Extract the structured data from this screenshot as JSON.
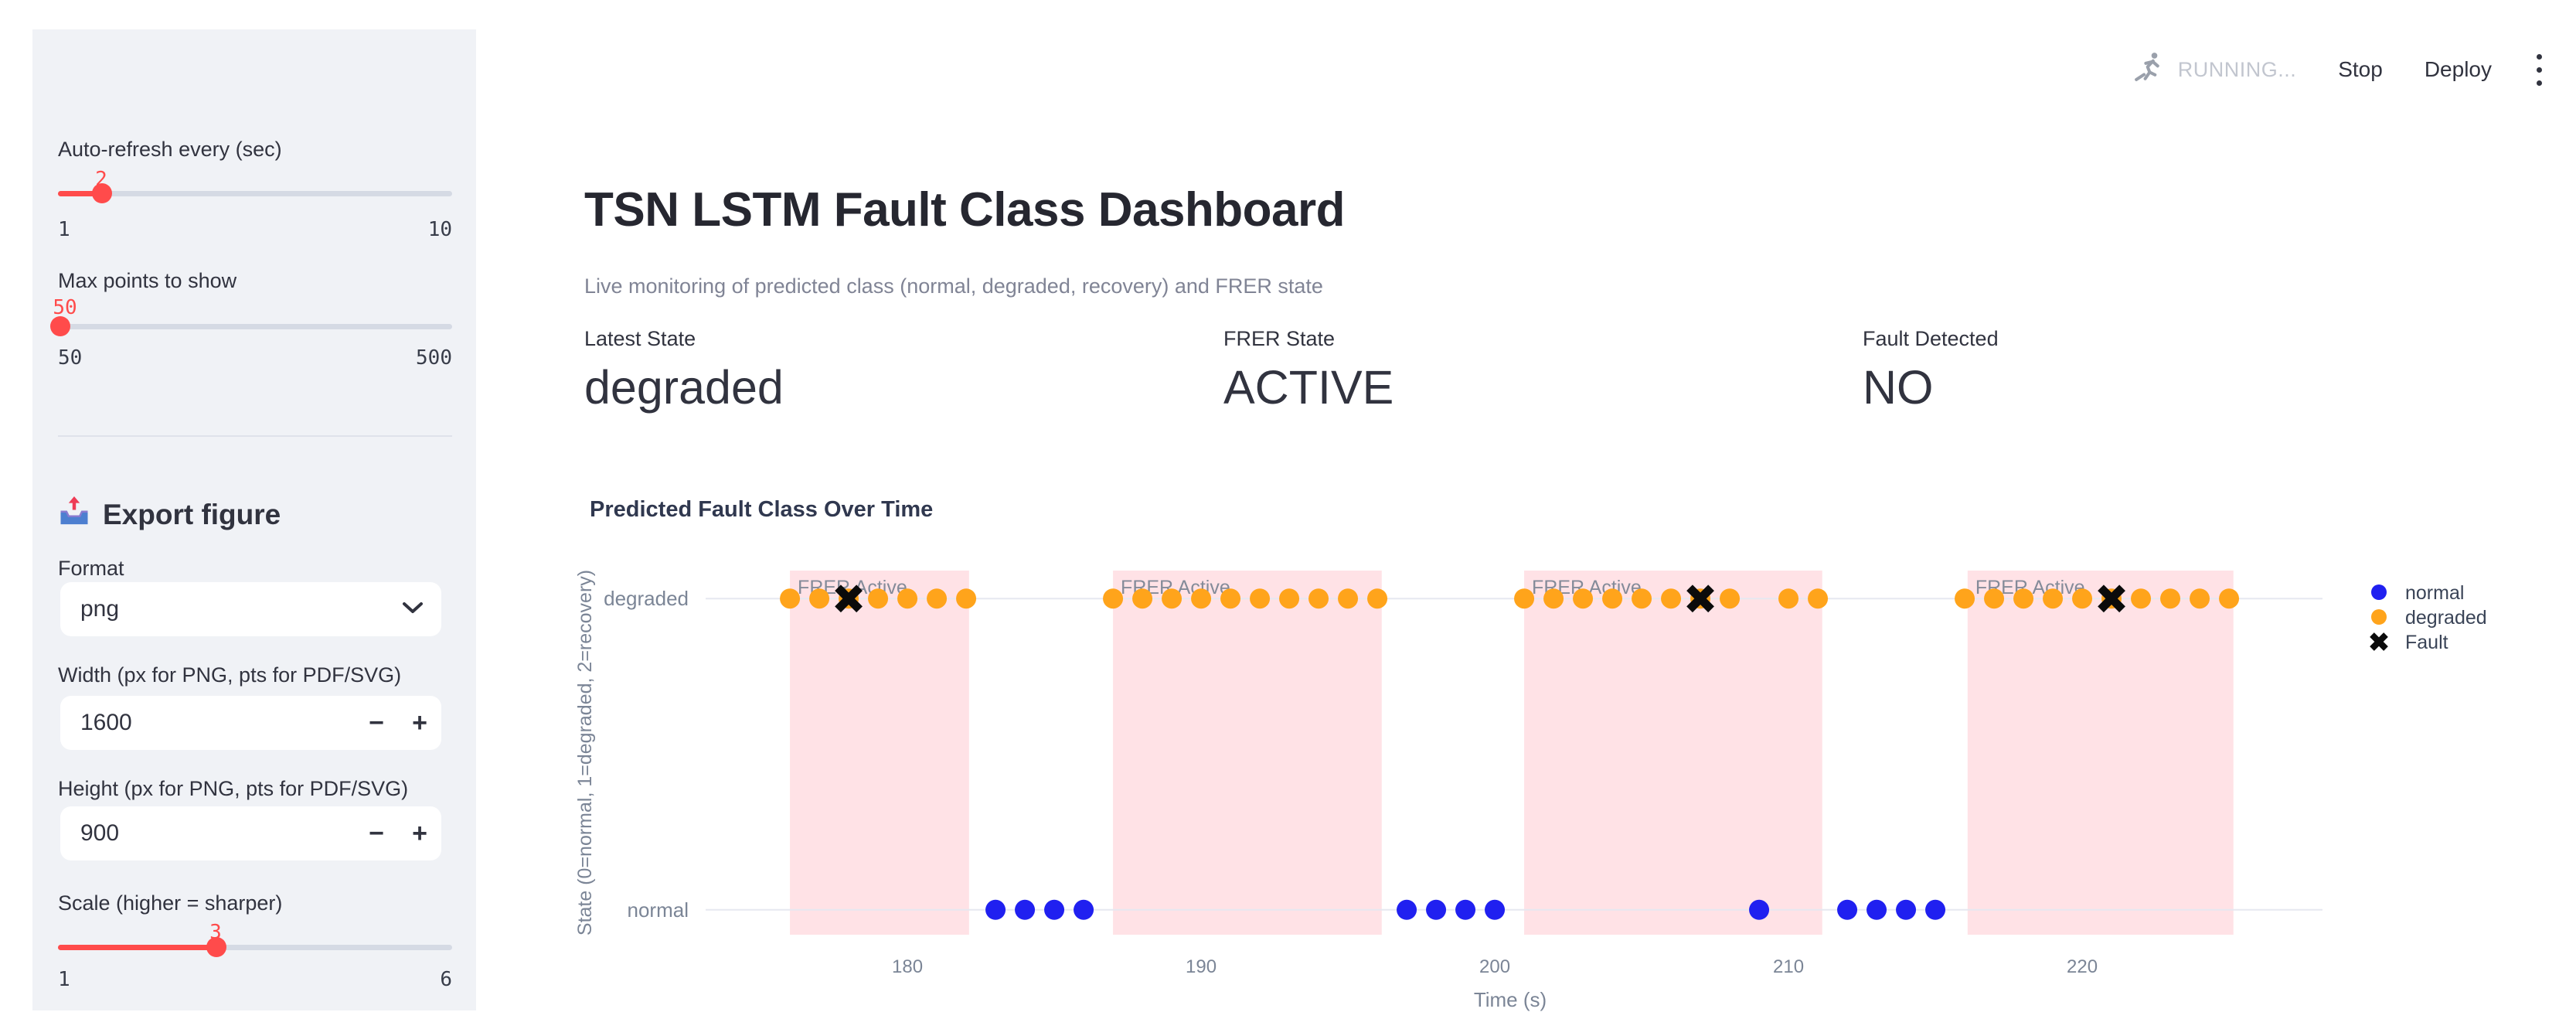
{
  "toolbar": {
    "status": "RUNNING...",
    "stop_label": "Stop",
    "deploy_label": "Deploy",
    "menu_icon": "kebab-menu-icon",
    "status_icon": "running-man-icon"
  },
  "sidebar": {
    "autorefresh": {
      "label": "Auto-refresh every (sec)",
      "value": "2",
      "min": "1",
      "max": "10"
    },
    "max_points": {
      "label": "Max points to show",
      "value": "50",
      "min": "50",
      "max": "500"
    },
    "export": {
      "icon": "outbox-tray-icon",
      "title": "Export figure",
      "format_label": "Format",
      "format_value": "png",
      "width_label": "Width (px for PNG, pts for PDF/SVG)",
      "width_value": "1600",
      "height_label": "Height (px for PNG, pts for PDF/SVG)",
      "height_value": "900",
      "minus_label": "−",
      "plus_label": "+",
      "scale": {
        "label": "Scale (higher = sharper)",
        "value": "3",
        "min": "1",
        "max": "6"
      }
    }
  },
  "header": {
    "title": "TSN LSTM Fault Class Dashboard",
    "subtitle": "Live monitoring of predicted class (normal, degraded, recovery) and FRER state"
  },
  "metrics": [
    {
      "label": "Latest State",
      "value": "degraded"
    },
    {
      "label": "FRER State",
      "value": "ACTIVE"
    },
    {
      "label": "Fault Detected",
      "value": "NO"
    }
  ],
  "colors": {
    "accent_red": "#ff4b4b",
    "sidebar_bg": "#f0f2f6",
    "normal_blue": "#2020f0",
    "degraded_orange": "#ffa41b",
    "fault_black": "#0b0b0b",
    "band_pink": "#ffe2e6",
    "axis_gray": "#7b8596",
    "grid_gray": "#e6e8f0"
  },
  "chart_data": {
    "type": "scatter",
    "title": "Predicted Fault Class Over Time",
    "xlabel": "Time (s)",
    "ylabel": "State (0=normal, 1=degraded, 2=recovery)",
    "xlim": [
      173.13,
      227.92
    ],
    "ylim": [
      -0.08,
      1.09
    ],
    "x_ticks": [
      180,
      190,
      200,
      210,
      220
    ],
    "y_ticks": [
      {
        "label": "normal",
        "value": 0
      },
      {
        "label": "degraded",
        "value": 1
      }
    ],
    "grid": "horizontal-only",
    "legend_position": "right-top-outside",
    "shaded_regions": {
      "label": "FRER Active",
      "color": "#ffe2e6",
      "label_color": "#848b99",
      "ranges": [
        [
          176.0,
          182.1
        ],
        [
          187.0,
          196.15
        ],
        [
          201.0,
          211.15
        ],
        [
          216.1,
          225.15
        ]
      ]
    },
    "series": [
      {
        "name": "normal",
        "marker": "circle",
        "color": "#2020f0",
        "y_value": 0,
        "x": [
          183,
          184,
          185,
          186,
          197,
          198,
          199,
          200,
          209,
          212,
          213,
          214,
          215
        ]
      },
      {
        "name": "degraded",
        "marker": "circle",
        "color": "#ffa41b",
        "y_value": 1,
        "x": [
          176,
          177,
          178,
          179,
          180,
          181,
          182,
          187,
          188,
          189,
          190,
          191,
          192,
          193,
          194,
          195,
          196,
          201,
          202,
          203,
          204,
          205,
          206,
          207,
          208,
          210,
          211,
          216,
          217,
          218,
          219,
          220,
          221,
          222,
          223,
          224,
          225
        ]
      },
      {
        "name": "Fault",
        "marker": "x",
        "color": "#0b0b0b",
        "y_value": 1,
        "x": [
          178,
          207,
          221
        ]
      }
    ]
  }
}
